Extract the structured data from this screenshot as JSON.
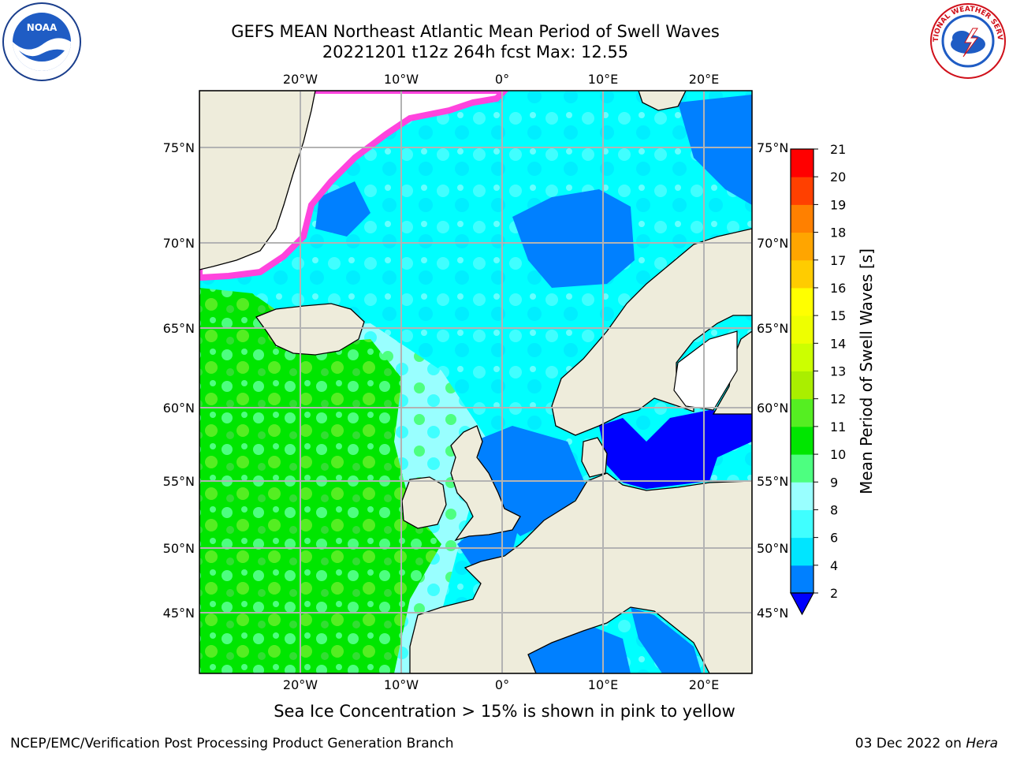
{
  "header": {
    "title_line1": "GEFS MEAN Northeast Atlantic Mean Period of Swell Waves",
    "title_line2": "20221201 t12z 264h fcst   Max: 12.55"
  },
  "map": {
    "lon_labels": [
      "20°W",
      "10°W",
      "0°",
      "10°E",
      "20°E"
    ],
    "lat_labels": [
      "75°N",
      "70°N",
      "65°N",
      "60°N",
      "55°N",
      "50°N",
      "45°N"
    ],
    "ocean_color": "#00ffff",
    "land_color": "#eeecdb"
  },
  "colorbar": {
    "label": "Mean Period of Swell Waves [s]",
    "ticks": [
      "2",
      "4",
      "6",
      "8",
      "9",
      "10",
      "11",
      "12",
      "13",
      "14",
      "15",
      "16",
      "17",
      "18",
      "19",
      "20",
      "21"
    ],
    "colors": [
      "#0000ff",
      "#0080ff",
      "#00e5ff",
      "#40ffff",
      "#99ffff",
      "#4dff80",
      "#00e600",
      "#55ee22",
      "#aaee00",
      "#ccff00",
      "#eeff00",
      "#ffff00",
      "#ffcc00",
      "#ffa500",
      "#ff8000",
      "#ff4000",
      "#ff0000"
    ]
  },
  "caption": "Sea Ice Concentration > 15% is shown in pink to yellow",
  "footer": {
    "left": "NCEP/EMC/Verification Post Processing Product Generation Branch",
    "right_prefix": "03 Dec 2022 on ",
    "right_machine": "Hera"
  },
  "logos": {
    "noaa_text": "NOAA",
    "nws_text": "NATIONAL WEATHER SERVICE"
  }
}
